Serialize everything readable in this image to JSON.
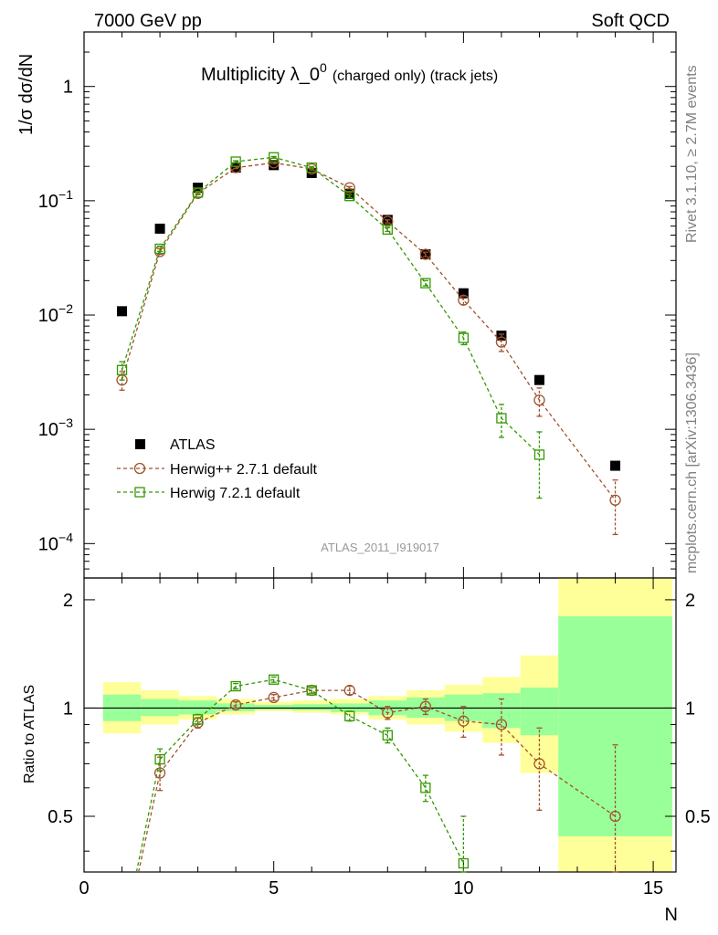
{
  "header": {
    "left": "7000 GeV pp",
    "right": "Soft QCD"
  },
  "side_text": {
    "top": "Rivet 3.1.10, ≥ 2.7M events",
    "bottom": "mcplots.cern.ch [arXiv:1306.3436]"
  },
  "chart_data": [
    {
      "type": "scatter",
      "title_main": "Multiplicity λ_0",
      "title_sup": "0",
      "title_suffix": "(charged only) (track jets)",
      "ylabel": "1/σ dσ/dN",
      "xlabel": "N",
      "analysis_label": "ATLAS_2011_I919017",
      "yscale": "log",
      "xlim": [
        0,
        15.6
      ],
      "ylim": [
        5e-05,
        3
      ],
      "x_ticks": [
        0,
        5,
        10,
        15
      ],
      "y_ticks": [
        {
          "value": 0.0001,
          "base": "10",
          "exp": "−4"
        },
        {
          "value": 0.001,
          "base": "10",
          "exp": "−3"
        },
        {
          "value": 0.01,
          "base": "10",
          "exp": "−2"
        },
        {
          "value": 0.1,
          "base": "10",
          "exp": "−1"
        },
        {
          "value": 1,
          "base": "1",
          "exp": ""
        }
      ],
      "legend_position": "bottom-left",
      "series": [
        {
          "name": "ATLAS",
          "color": "#000000",
          "marker": "filled-square",
          "x": [
            1,
            2,
            3,
            4,
            5,
            6,
            7,
            8,
            9,
            10,
            11,
            12,
            14
          ],
          "y": [
            0.0108,
            0.057,
            0.13,
            0.195,
            0.205,
            0.175,
            0.115,
            0.068,
            0.034,
            0.0155,
            0.0066,
            0.0027,
            0.00048
          ]
        },
        {
          "name": "Herwig++ 2.7.1 default",
          "color": "#a0522d",
          "marker": "open-circle",
          "x": [
            1,
            2,
            3,
            4,
            5,
            6,
            7,
            8,
            9,
            10,
            11,
            12,
            14
          ],
          "y": [
            0.0027,
            0.036,
            0.116,
            0.195,
            0.215,
            0.19,
            0.13,
            0.066,
            0.034,
            0.0135,
            0.0058,
            0.0018,
            0.00024
          ],
          "err": [
            0.0005,
            0.002,
            0.003,
            0.004,
            0.004,
            0.004,
            0.003,
            0.002,
            0.0015,
            0.0012,
            0.001,
            0.0005,
            0.00012
          ]
        },
        {
          "name": "Herwig 7.2.1 default",
          "color": "#339900",
          "marker": "open-square",
          "x": [
            1,
            2,
            3,
            4,
            5,
            6,
            7,
            8,
            9,
            10,
            11,
            12
          ],
          "y": [
            0.0033,
            0.038,
            0.118,
            0.22,
            0.24,
            0.195,
            0.11,
            0.056,
            0.019,
            0.0063,
            0.00125,
            0.0006
          ],
          "err": [
            0.0006,
            0.002,
            0.003,
            0.004,
            0.004,
            0.004,
            0.003,
            0.002,
            0.001,
            0.0008,
            0.0004,
            0.00035
          ]
        }
      ]
    },
    {
      "type": "scatter",
      "ylabel": "Ratio to ATLAS",
      "xlabel": "N",
      "xlim": [
        0,
        15.6
      ],
      "ylim": [
        0.35,
        2.3
      ],
      "yscale": "log",
      "y_ticks": [
        0.5,
        1,
        2
      ],
      "bands": {
        "x_edges": [
          0.5,
          1.5,
          2.5,
          3.5,
          4.5,
          5.5,
          6.5,
          7.5,
          8.5,
          9.5,
          10.5,
          11.5,
          12.5,
          15.5
        ],
        "outer_color": "#ffff99",
        "inner_color": "#99ff99",
        "outer_low": [
          0.85,
          0.9,
          0.93,
          0.96,
          0.98,
          0.97,
          0.96,
          0.93,
          0.9,
          0.86,
          0.8,
          0.66,
          0.3
        ],
        "outer_high": [
          1.18,
          1.12,
          1.08,
          1.06,
          1.04,
          1.05,
          1.06,
          1.08,
          1.12,
          1.16,
          1.22,
          1.4,
          2.3
        ],
        "inner_low": [
          0.92,
          0.95,
          0.96,
          0.98,
          0.99,
          0.985,
          0.975,
          0.955,
          0.94,
          0.92,
          0.88,
          0.84,
          0.44
        ],
        "inner_high": [
          1.09,
          1.06,
          1.05,
          1.03,
          1.02,
          1.025,
          1.03,
          1.05,
          1.07,
          1.09,
          1.1,
          1.14,
          1.8
        ]
      },
      "series": [
        {
          "name": "Herwig++ 2.7.1 default",
          "color": "#a0522d",
          "marker": "open-circle",
          "x": [
            2,
            3,
            4,
            5,
            6,
            7,
            8,
            9,
            10,
            11,
            12,
            14
          ],
          "y": [
            0.66,
            0.91,
            1.02,
            1.07,
            1.12,
            1.12,
            0.97,
            1.01,
            0.92,
            0.9,
            0.7,
            0.5
          ],
          "err": [
            0.07,
            0.03,
            0.02,
            0.02,
            0.02,
            0.03,
            0.04,
            0.05,
            0.09,
            0.16,
            0.18,
            0.29
          ]
        },
        {
          "name": "Herwig 7.2.1 default",
          "color": "#339900",
          "marker": "open-square",
          "x": [
            2,
            3,
            4,
            5,
            6,
            7,
            8,
            9,
            10
          ],
          "y": [
            0.72,
            0.93,
            1.15,
            1.2,
            1.12,
            0.95,
            0.84,
            0.6,
            0.37
          ],
          "err": [
            0.05,
            0.03,
            0.02,
            0.02,
            0.02,
            0.03,
            0.04,
            0.05,
            0.13
          ]
        }
      ],
      "curve_start": [
        {
          "x": 1.3,
          "y": 0.3,
          "color": "#a0522d"
        },
        {
          "x": 1.25,
          "y": 0.3,
          "color": "#339900"
        }
      ]
    }
  ]
}
